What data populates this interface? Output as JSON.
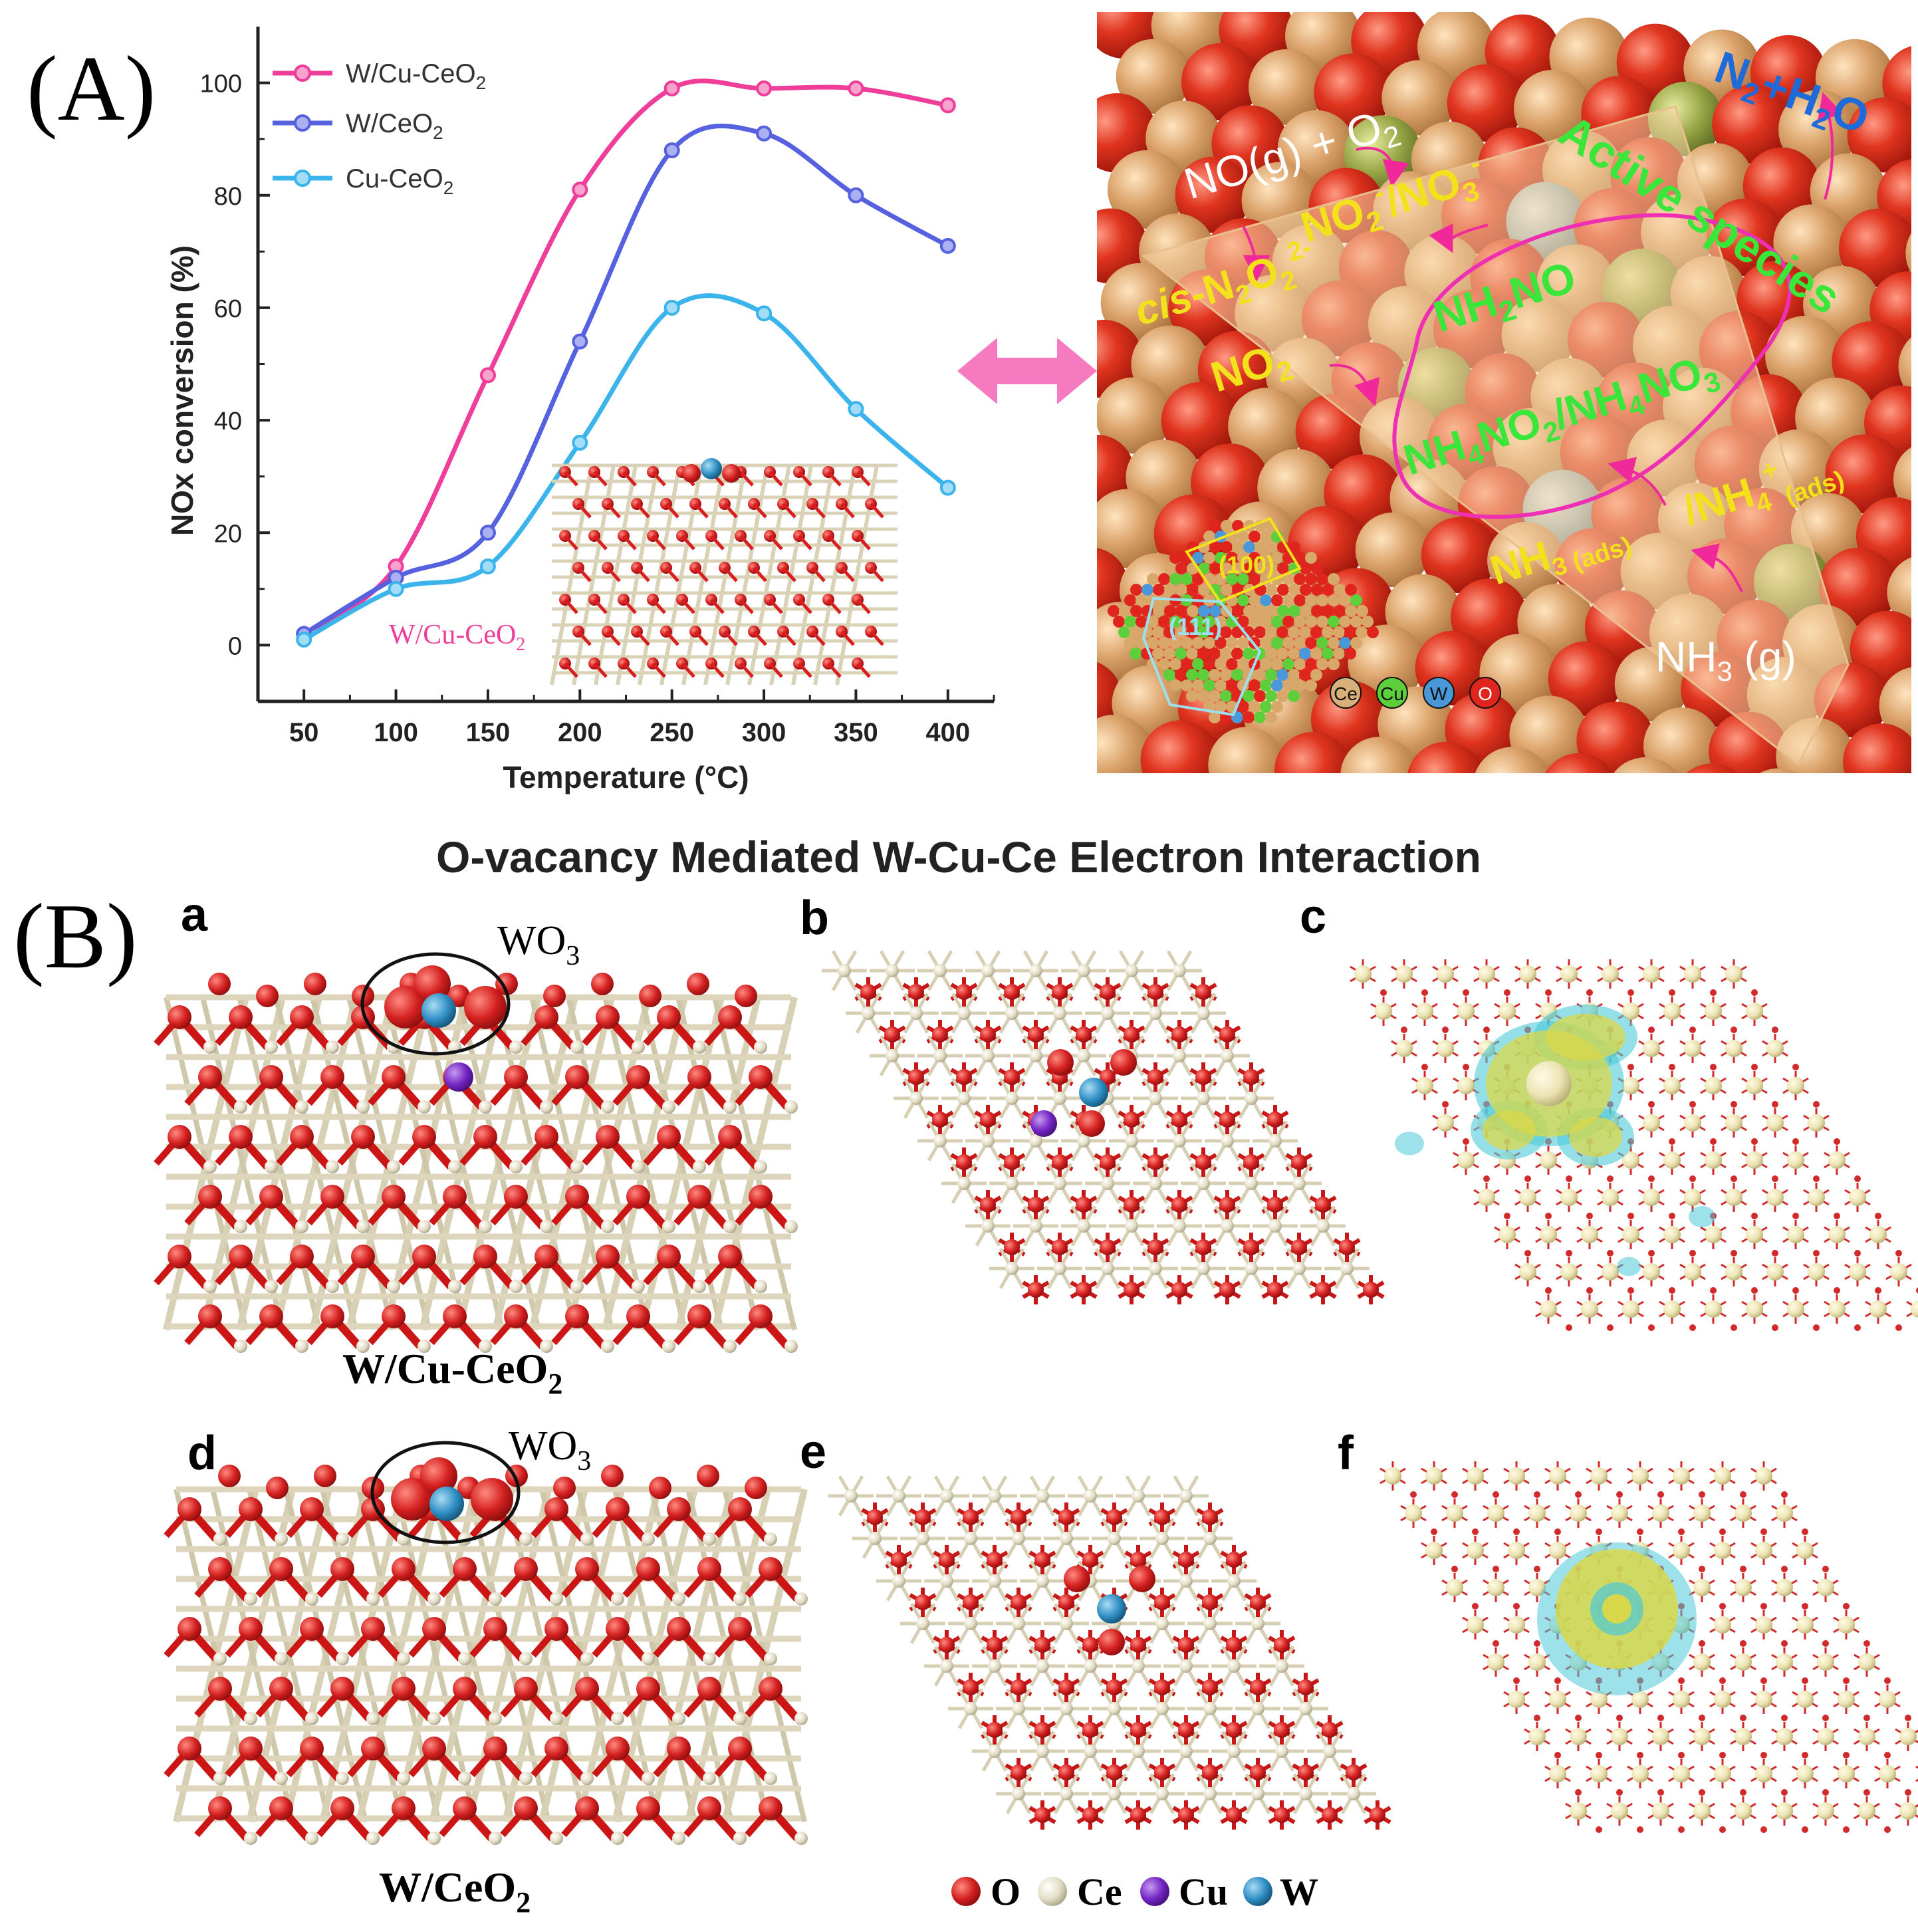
{
  "panel_A_label": "(A)",
  "panel_B_label": "(B)",
  "chart_data": {
    "type": "line",
    "title": "",
    "xlabel": "Temperature (°C)",
    "ylabel": "NOx conversion (%)",
    "xlim": [
      25,
      425
    ],
    "ylim": [
      -10,
      110
    ],
    "x_ticks": [
      50,
      100,
      150,
      200,
      250,
      300,
      350,
      400
    ],
    "y_ticks": [
      0,
      20,
      40,
      60,
      80,
      100
    ],
    "grid": false,
    "legend_position": "top-left",
    "series": [
      {
        "name": "W/Cu-CeO2",
        "color": "#ef3e9a",
        "x": [
          50,
          100,
          150,
          200,
          250,
          300,
          350,
          400
        ],
        "y": [
          2,
          14,
          48,
          81,
          99,
          99,
          99,
          96
        ]
      },
      {
        "name": "W/CeO2",
        "color": "#5561de",
        "x": [
          50,
          100,
          150,
          200,
          250,
          300,
          350,
          400
        ],
        "y": [
          2,
          12,
          20,
          54,
          88,
          91,
          80,
          71
        ]
      },
      {
        "name": "Cu-CeO2",
        "color": "#3bb4ec",
        "x": [
          50,
          100,
          150,
          200,
          250,
          300,
          350,
          400
        ],
        "y": [
          1,
          10,
          14,
          36,
          60,
          59,
          42,
          28
        ]
      }
    ],
    "inset_label": "W/Cu-CeO2"
  },
  "legend": {
    "w_cu_ceo2": {
      "main": "W/Cu-CeO",
      "sub": "2"
    },
    "w_ceo2": {
      "main": "W/CeO",
      "sub": "2"
    },
    "cu_ceo2": {
      "main": "Cu-CeO",
      "sub": "2"
    }
  },
  "inset_text": {
    "main": "W/Cu-CeO",
    "sub": "2"
  },
  "mechanism": {
    "n2": "N",
    "n2_sub": "2",
    "plus": "+",
    "h2o_h": "H",
    "h2o_sub": "2",
    "h2o_o": "O",
    "no_g": "NO(g) + O",
    "no_g_sub": "2",
    "no2_no3": "NO",
    "no2_no3_sub1": "2",
    "no2_no3_sup1": "-",
    "no2_no3_mid": "/NO",
    "no2_no3_sub2": "3",
    "no2_no3_sup2": "-",
    "active_species": "Active species",
    "cis": "cis",
    "cis_rest": "-N",
    "cis_sub1": "2",
    "cis_o": "O",
    "cis_sub2": "2",
    "cis_sup": "2-",
    "no2": "NO",
    "no2_sub": "2",
    "nh2no": "NH",
    "nh2no_sub": "2",
    "nh2no_rest": "NO",
    "nh4_a": "NH",
    "nh4_a_sub": "4",
    "nh4_b": "NO",
    "nh4_b_sub": "2",
    "nh4_c": "/NH",
    "nh4_c_sub": "4",
    "nh4_d": "NO",
    "nh4_d_sub": "3",
    "nh3_ads": "NH",
    "nh3_ads_sub": "3 (ads)",
    "nh4_ads": "/NH",
    "nh4_ads_sub": "4",
    "nh4_ads_sup": "+",
    "nh4_ads_tail": "(ads)",
    "nh3_g": "NH",
    "nh3_g_sub": "3",
    "nh3_g_rest": " (g)",
    "facet_100": "(100)",
    "facet_111": "(111)",
    "legend_ce": "Ce",
    "legend_cu": "Cu",
    "legend_w": "W",
    "legend_o": "O"
  },
  "panel_B": {
    "title": "O-vacancy Mediated W-Cu-Ce Electron Interaction",
    "sub_a": "a",
    "sub_b": "b",
    "sub_c": "c",
    "sub_d": "d",
    "sub_e": "e",
    "sub_f": "f",
    "wo3_a": "WO",
    "wo3_a_sub": "3",
    "wo3_d": "WO",
    "wo3_d_sub": "3",
    "label_a": "W/Cu-CeO",
    "label_a_sub": "2",
    "label_d": "W/CeO",
    "label_d_sub": "2",
    "legend_o": "O",
    "legend_ce": "Ce",
    "legend_cu": "Cu",
    "legend_w": "W"
  },
  "colors": {
    "oxygen": "#d81e1e",
    "cerium": "#e8e2cc",
    "copper": "#7a2bc7",
    "tungsten": "#2f8fc4",
    "surface": "#d9a774",
    "green_label": "#39e639",
    "yellow_label": "#f3e11b",
    "arrow_pink": "#f274b5",
    "charge_yellow": "#d9d84a",
    "charge_cyan": "#4cc9d8"
  }
}
